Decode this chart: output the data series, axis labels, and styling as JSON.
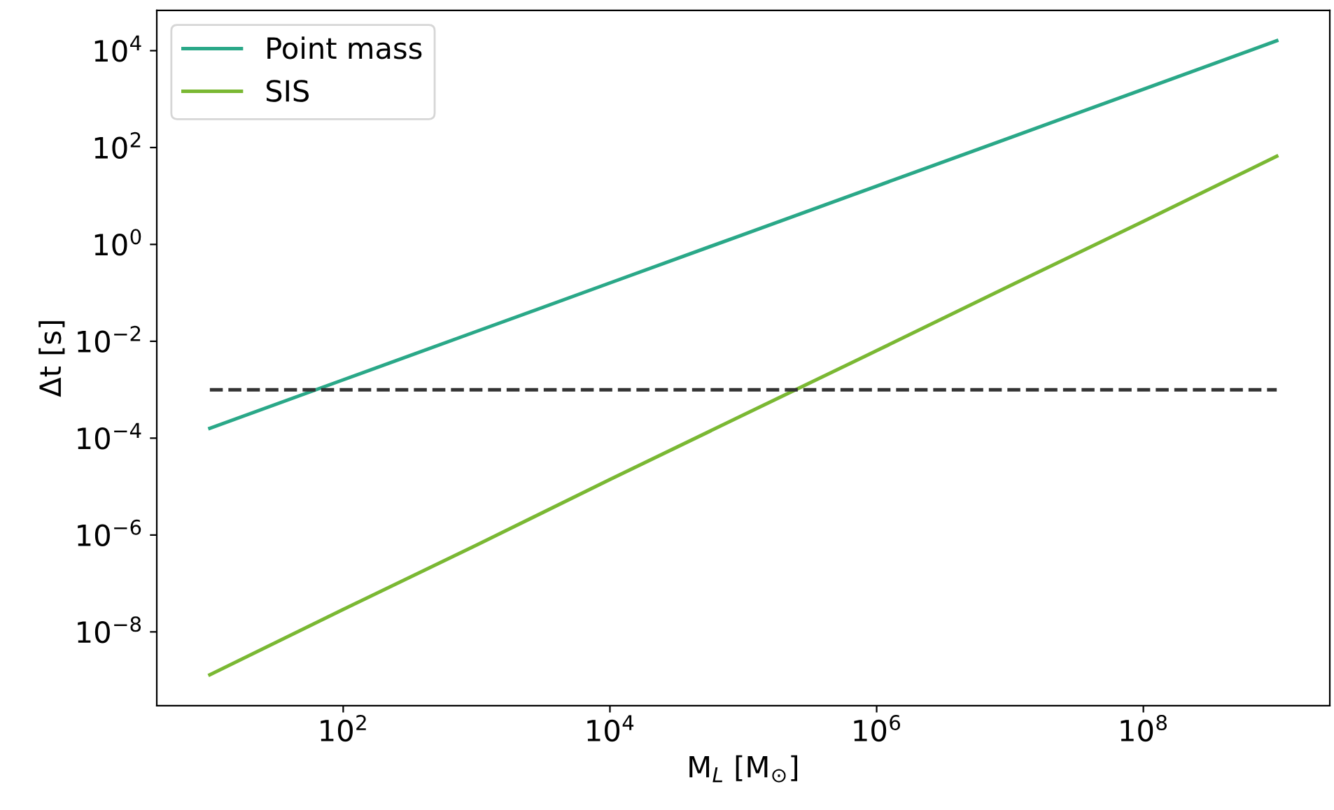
{
  "chart_data": {
    "type": "line",
    "xlabel": "M$_{L}$ [M$_{⊙}$]",
    "ylabel": "Δt [s]",
    "x": [
      10,
      100,
      1000,
      10000,
      100000,
      1000000,
      10000000,
      100000000,
      1000000000
    ],
    "series": [
      {
        "name": "Point mass",
        "color": "#2aa888",
        "values": [
          0.00016,
          0.0016,
          0.016,
          0.16,
          1.6,
          16,
          160,
          1600,
          16000
        ]
      },
      {
        "name": "SIS",
        "color": "#7ab833",
        "values": [
          1.3e-09,
          2.9e-08,
          6.2e-07,
          1.4e-05,
          0.0003,
          0.0064,
          0.14,
          3.0,
          66
        ]
      }
    ],
    "log": "xy",
    "xlim": [
      4,
      2500000000.0
    ],
    "ylim": [
      3e-10,
      68000
    ],
    "xticks": [
      {
        "value": 100,
        "label": "10$^{2}$"
      },
      {
        "value": 10000,
        "label": "10$^{4}$"
      },
      {
        "value": 1000000,
        "label": "10$^{6}$"
      },
      {
        "value": 100000000,
        "label": "10$^{8}$"
      }
    ],
    "yticks": [
      {
        "value": 1e-08,
        "label": "10$^{−8}$"
      },
      {
        "value": 1e-06,
        "label": "10$^{−6}$"
      },
      {
        "value": 0.0001,
        "label": "10$^{−4}$"
      },
      {
        "value": 0.01,
        "label": "10$^{−2}$"
      },
      {
        "value": 1,
        "label": "10$^{0}$"
      },
      {
        "value": 100,
        "label": "10$^{2}$"
      },
      {
        "value": 10000,
        "label": "10$^{4}$"
      }
    ],
    "ref_lines": [
      {
        "axis": "y",
        "value": 0.001,
        "color": "#333333",
        "line_style": "dashed"
      }
    ],
    "legend": "top left",
    "line_style": "solid"
  }
}
